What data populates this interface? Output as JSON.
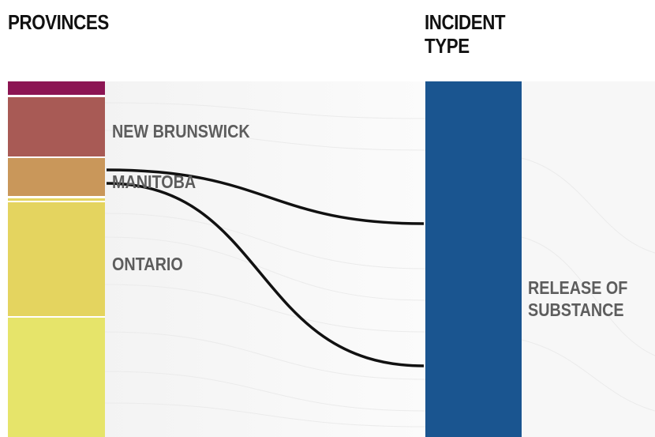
{
  "columns": {
    "provinces_title": "PROVINCES",
    "incident_title": "INCIDENT\nTYPE"
  },
  "nodes": {
    "provinces": [
      {
        "id": "unlabeled-top",
        "label": "",
        "color": "#8c1553"
      },
      {
        "id": "new-brunswick",
        "label": "NEW BRUNSWICK",
        "color": "#a85a55"
      },
      {
        "id": "manitoba",
        "label": "MANITOBA",
        "color": "#c9975a"
      },
      {
        "id": "ontario",
        "label": "ONTARIO",
        "color": "#e4d45f"
      },
      {
        "id": "unlabeled-bottom",
        "label": "",
        "color": "#e6e46a"
      }
    ],
    "incident_types": [
      {
        "id": "release-of-substance",
        "label": "RELEASE OF\nSUBSTANCE",
        "color": "#1a5590"
      }
    ]
  },
  "highlighted_links": [
    {
      "from": "manitoba",
      "to": "release-of-substance"
    },
    {
      "from": "manitoba",
      "to": "release-of-substance"
    }
  ],
  "colors": {
    "link_highlight": "#111111",
    "link_background": "#ececec",
    "label_text": "#5d5d5d"
  }
}
